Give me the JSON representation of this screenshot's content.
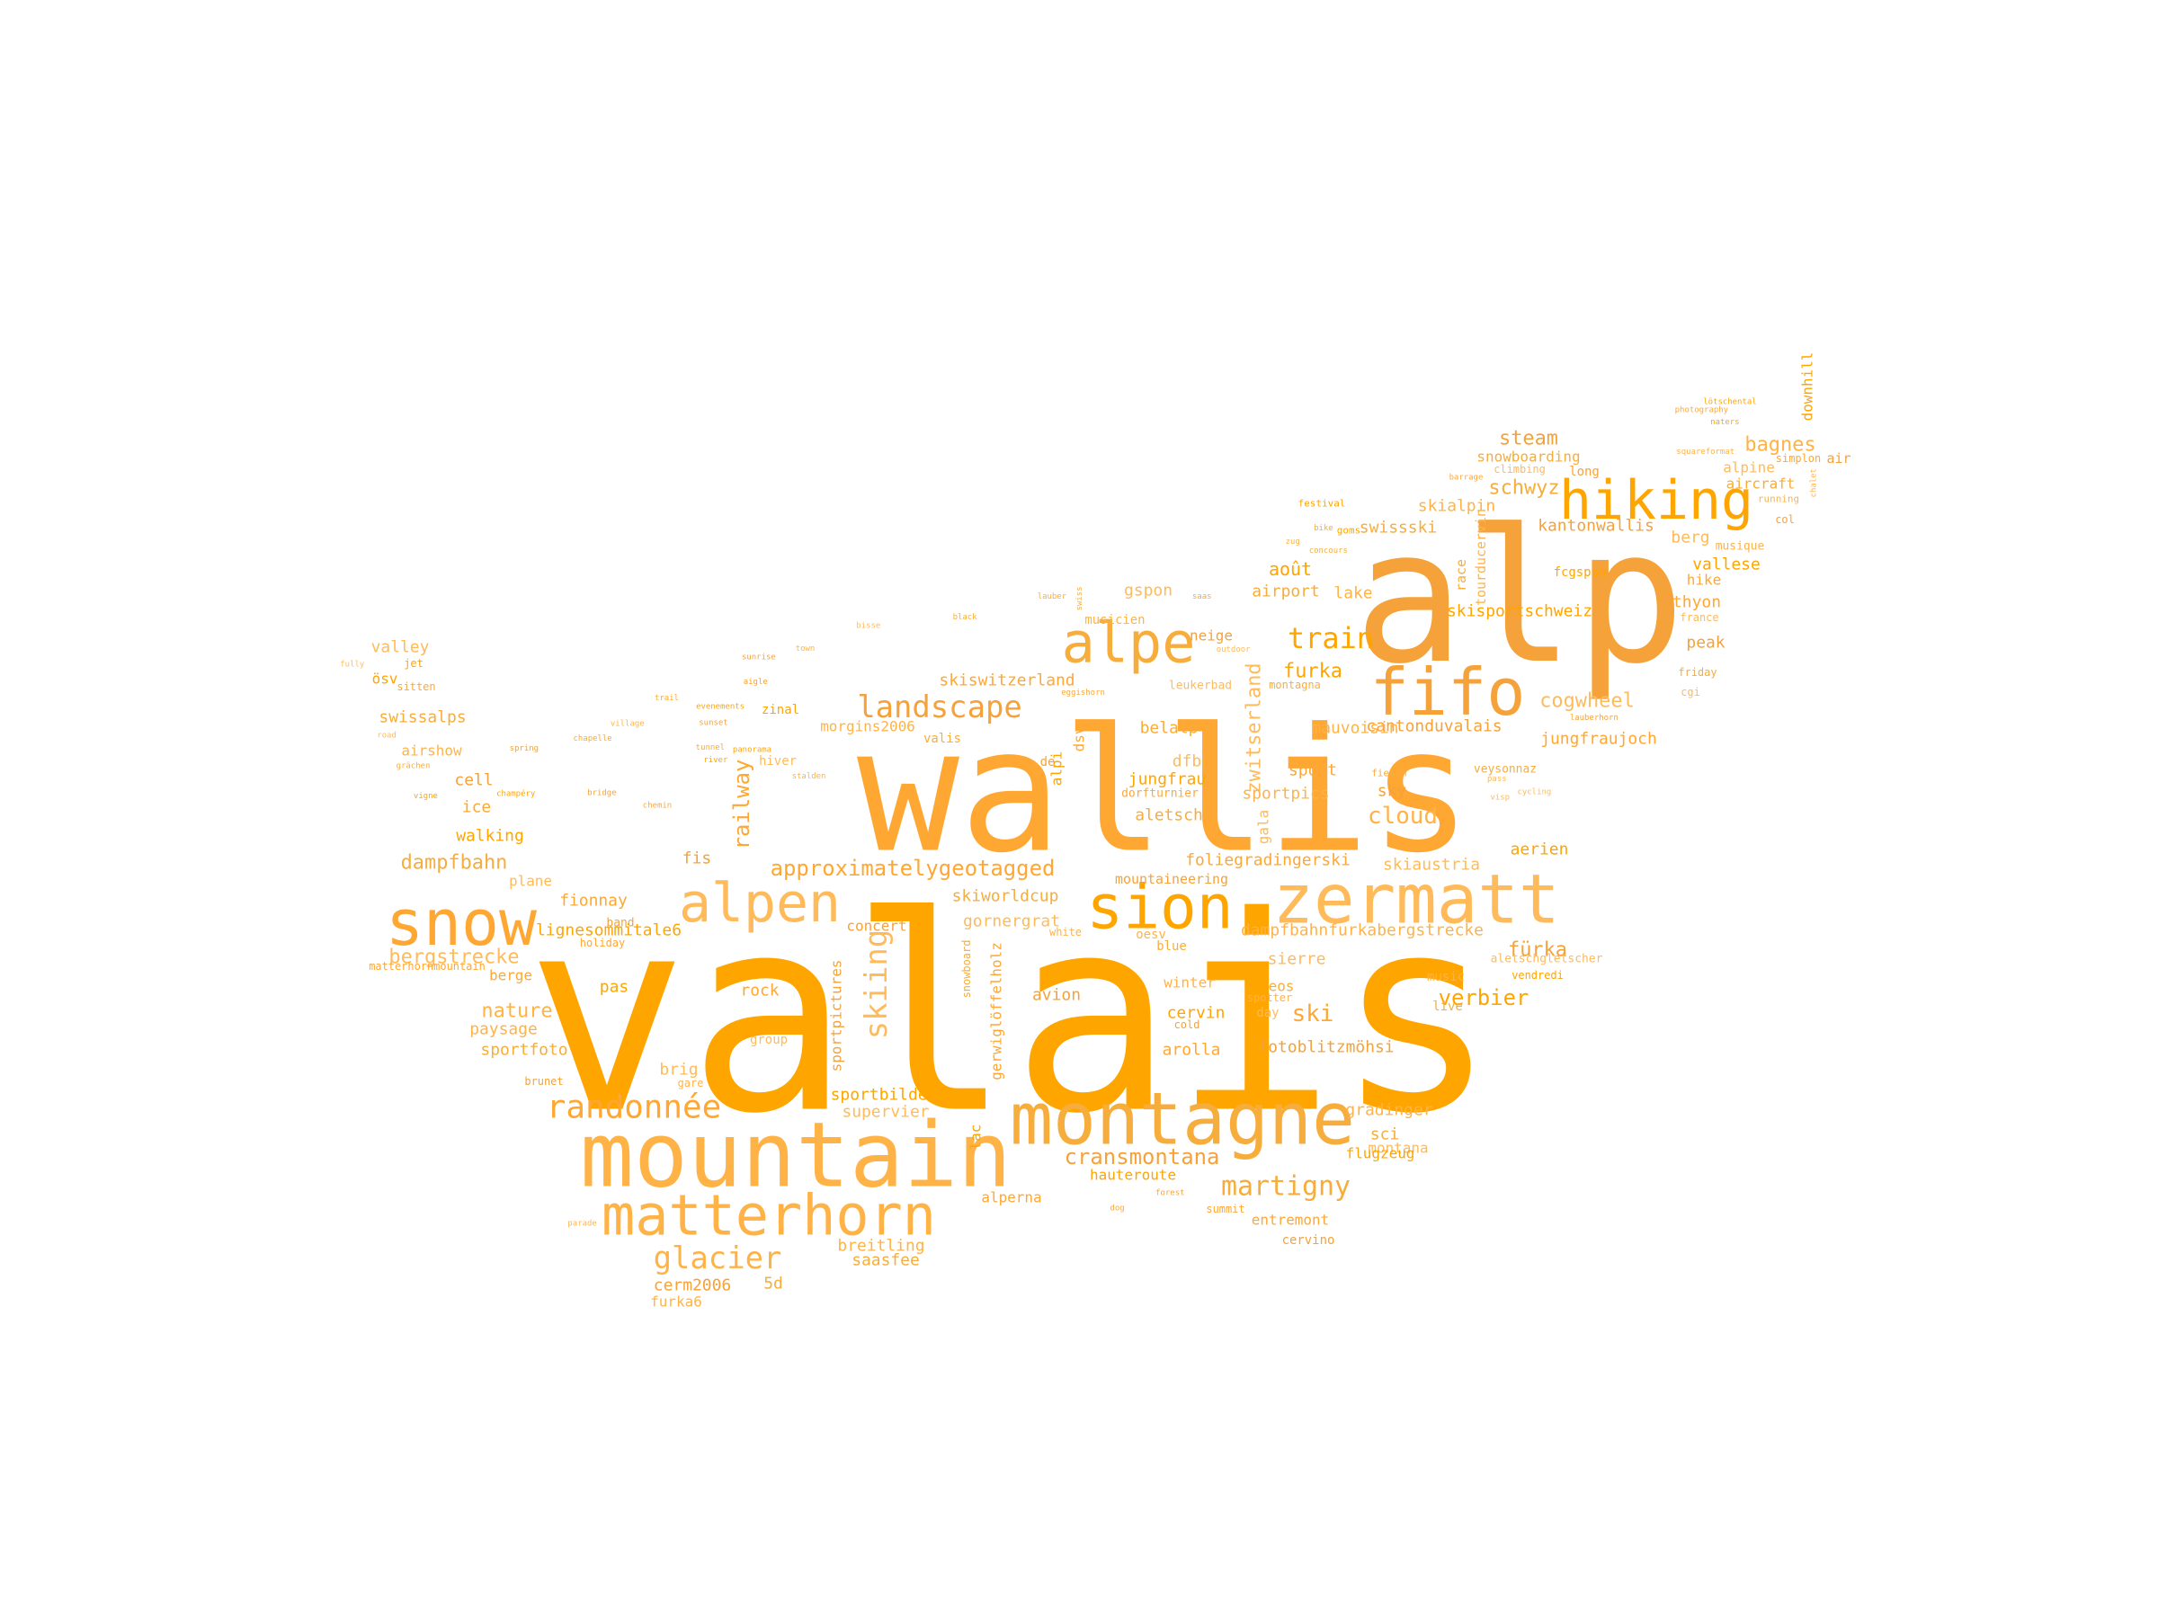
{
  "colors": {
    "background": "#ffffff",
    "word_color": "#ffa500"
  },
  "words": [
    {
      "text": "valais",
      "w": 100
    },
    {
      "text": "wallis",
      "w": 78
    },
    {
      "text": "alp",
      "w": 66
    },
    {
      "text": "mountain",
      "w": 34
    },
    {
      "text": "montagne",
      "w": 30
    },
    {
      "text": "zermatt",
      "w": 28
    },
    {
      "text": "sion",
      "w": 27
    },
    {
      "text": "snow",
      "w": 26
    },
    {
      "text": "fifo",
      "w": 26
    },
    {
      "text": "matterhorn",
      "w": 24
    },
    {
      "text": "alpe",
      "w": 24
    },
    {
      "text": "alpen",
      "w": 24
    },
    {
      "text": "hiking",
      "w": 24
    },
    {
      "text": "randonnée",
      "w": 15
    },
    {
      "text": "landscape",
      "w": 14
    },
    {
      "text": "glacier",
      "w": 13
    },
    {
      "text": "martigny",
      "w": 12
    },
    {
      "text": "skiing",
      "w": 12
    },
    {
      "text": "train",
      "w": 12
    },
    {
      "text": "approximatelygeotagged",
      "w": 11
    },
    {
      "text": "cransmontana",
      "w": 10
    },
    {
      "text": "cloud",
      "w": 10
    },
    {
      "text": "dampfbahn",
      "w": 10
    },
    {
      "text": "bergstrecke",
      "w": 10
    },
    {
      "text": "verbier",
      "w": 10
    },
    {
      "text": "ski",
      "w": 10
    },
    {
      "text": "steam",
      "w": 9
    },
    {
      "text": "bagnes",
      "w": 9
    },
    {
      "text": "schwyz",
      "w": 9
    },
    {
      "text": "cogwheel",
      "w": 9
    },
    {
      "text": "furka",
      "w": 9
    },
    {
      "text": "railway",
      "w": 9
    },
    {
      "text": "fürka",
      "w": 9
    },
    {
      "text": "nature",
      "w": 9
    },
    {
      "text": "aircraft",
      "w": 7
    },
    {
      "text": "zwitserland",
      "w": 8
    },
    {
      "text": "août",
      "w": 8
    },
    {
      "text": "skiswitzerland",
      "w": 7
    },
    {
      "text": "kantonwallis",
      "w": 7
    },
    {
      "text": "skialpin",
      "w": 7
    },
    {
      "text": "swissski",
      "w": 7
    },
    {
      "text": "berg",
      "w": 7
    },
    {
      "text": "vallese",
      "w": 7
    },
    {
      "text": "thyon",
      "w": 7
    },
    {
      "text": "peak",
      "w": 7
    },
    {
      "text": "lake",
      "w": 7
    },
    {
      "text": "airport",
      "w": 7
    },
    {
      "text": "gspon",
      "w": 7
    },
    {
      "text": "skisportschweiz",
      "w": 7
    },
    {
      "text": "jungfraujoch",
      "w": 7
    },
    {
      "text": "cantonduvalais",
      "w": 7
    },
    {
      "text": "mauvoisin",
      "w": 7
    },
    {
      "text": "belalp",
      "w": 7
    },
    {
      "text": "dfb",
      "w": 7
    },
    {
      "text": "jungfrau",
      "w": 7
    },
    {
      "text": "sport",
      "w": 7
    },
    {
      "text": "sky",
      "w": 7
    },
    {
      "text": "sportpics",
      "w": 7
    },
    {
      "text": "aletsch",
      "w": 7
    },
    {
      "text": "skiaustria",
      "w": 7
    },
    {
      "text": "aerien",
      "w": 7
    },
    {
      "text": "foliegradingerski",
      "w": 7
    },
    {
      "text": "mountaineering",
      "w": 6
    },
    {
      "text": "dampfbahnfurkabergstrecke",
      "w": 7
    },
    {
      "text": "skiworldcup",
      "w": 7
    },
    {
      "text": "gornergrat",
      "w": 7
    },
    {
      "text": "lignesommitale6",
      "w": 7
    },
    {
      "text": "fionnay",
      "w": 7
    },
    {
      "text": "concert",
      "w": 7
    },
    {
      "text": "paysage",
      "w": 7
    },
    {
      "text": "sportfoto",
      "w": 7
    },
    {
      "text": "brig",
      "w": 7
    },
    {
      "text": "pas",
      "w": 7
    },
    {
      "text": "rock",
      "w": 7
    },
    {
      "text": "avion",
      "w": 7
    },
    {
      "text": "winter",
      "w": 7
    },
    {
      "text": "eos",
      "w": 7
    },
    {
      "text": "sierre",
      "w": 7
    },
    {
      "text": "cervin",
      "w": 7
    },
    {
      "text": "arolla",
      "w": 7
    },
    {
      "text": "fotoblitzmöhsi",
      "w": 7
    },
    {
      "text": "gradinger",
      "w": 7
    },
    {
      "text": "sci",
      "w": 7
    },
    {
      "text": "montana",
      "w": 7
    },
    {
      "text": "hauteroute",
      "w": 7
    },
    {
      "text": "entremont",
      "w": 7
    },
    {
      "text": "cervino",
      "w": 6
    },
    {
      "text": "breitling",
      "w": 7
    },
    {
      "text": "saasfee",
      "w": 7
    },
    {
      "text": "supervier",
      "w": 7
    },
    {
      "text": "sportbilder",
      "w": 7
    },
    {
      "text": "alperna",
      "w": 7
    },
    {
      "text": "cerm2006",
      "w": 7
    },
    {
      "text": "furka6",
      "w": 6
    },
    {
      "text": "5d",
      "w": 7
    },
    {
      "text": "plane",
      "w": 7
    },
    {
      "text": "walking",
      "w": 7
    },
    {
      "text": "ice",
      "w": 7
    },
    {
      "text": "cell",
      "w": 7
    },
    {
      "text": "airshow",
      "w": 7
    },
    {
      "text": "swissalps",
      "w": 7
    },
    {
      "text": "valley",
      "w": 7
    },
    {
      "text": "ösv",
      "w": 7
    },
    {
      "text": "berge",
      "w": 7
    },
    {
      "text": "fis",
      "w": 7
    },
    {
      "text": "morgins2006",
      "w": 7
    },
    {
      "text": "snowboarding",
      "w": 6
    },
    {
      "text": "alpine",
      "w": 7
    },
    {
      "text": "downhill",
      "w": 7
    },
    {
      "text": "hike",
      "w": 7
    },
    {
      "text": "neige",
      "w": 7
    },
    {
      "text": "oesv",
      "w": 6
    },
    {
      "text": "blue",
      "w": 6
    },
    {
      "text": "gala",
      "w": 6
    },
    {
      "text": "alpi",
      "w": 6
    },
    {
      "text": "dsv",
      "w": 6
    },
    {
      "text": "de",
      "w": 6
    },
    {
      "text": "tourducervin",
      "w": 6
    },
    {
      "text": "race",
      "w": 6
    },
    {
      "text": "group",
      "w": 6
    },
    {
      "text": "lac",
      "w": 6
    },
    {
      "text": "gerwiglöffelholz",
      "w": 6
    },
    {
      "text": "sportpictures",
      "w": 6
    },
    {
      "text": "music",
      "w": 6
    },
    {
      "text": "live",
      "w": 6
    },
    {
      "text": "day",
      "w": 6
    },
    {
      "text": "flugzeug",
      "w": 6
    },
    {
      "text": "summit",
      "w": 5
    },
    {
      "text": "long",
      "w": 6
    },
    {
      "text": "musique",
      "w": 6
    },
    {
      "text": "friday",
      "w": 5
    },
    {
      "text": "france",
      "w": 5
    },
    {
      "text": "fcgspon",
      "w": 6
    },
    {
      "text": "simplon",
      "w": 6
    },
    {
      "text": "air",
      "w": 6
    },
    {
      "text": "musicien",
      "w": 6
    },
    {
      "text": "valis",
      "w": 6
    },
    {
      "text": "hiver",
      "w": 6
    },
    {
      "text": "zinal",
      "w": 6
    },
    {
      "text": "holiday",
      "w": 5
    },
    {
      "text": "band",
      "w": 6
    },
    {
      "text": "gare",
      "w": 5
    },
    {
      "text": "montagna",
      "w": 5
    },
    {
      "text": "leukerbad",
      "w": 5
    },
    {
      "text": "festival",
      "w": 5
    },
    {
      "text": "dorfturnier",
      "w": 5
    },
    {
      "text": "cold",
      "w": 5
    },
    {
      "text": "spotter",
      "w": 5
    },
    {
      "text": "veysonnaz",
      "w": 5
    },
    {
      "text": "aletschgletscher",
      "w": 5
    },
    {
      "text": "vendredi",
      "w": 5
    },
    {
      "text": "matterhornmountain",
      "w": 5
    },
    {
      "text": "brunet",
      "w": 5
    },
    {
      "text": "running",
      "w": 5
    },
    {
      "text": "fiesch",
      "w": 5
    },
    {
      "text": "climbing",
      "w": 5
    },
    {
      "text": "jet",
      "w": 5
    },
    {
      "text": "sitten",
      "w": 5
    },
    {
      "text": "col",
      "w": 5
    },
    {
      "text": "white",
      "w": 5
    },
    {
      "text": "snowboard",
      "w": 5
    },
    {
      "text": "cgi",
      "w": 5
    },
    {
      "text": "goms",
      "w": 5
    },
    {
      "text": "tunnel",
      "w": 4
    },
    {
      "text": "spring",
      "w": 4
    },
    {
      "text": "village",
      "w": 4
    },
    {
      "text": "trail",
      "w": 4
    },
    {
      "text": "fully",
      "w": 4
    },
    {
      "text": "evenements",
      "w": 4
    },
    {
      "text": "photography",
      "w": 4
    },
    {
      "text": "sunrise",
      "w": 4
    },
    {
      "text": "parade",
      "w": 4
    },
    {
      "text": "black",
      "w": 4
    },
    {
      "text": "outdoor",
      "w": 4
    },
    {
      "text": "lötschental",
      "w": 4
    },
    {
      "text": "saas",
      "w": 4
    },
    {
      "text": "bridge",
      "w": 4
    },
    {
      "text": "chalet",
      "w": 4
    },
    {
      "text": "lauber",
      "w": 4
    },
    {
      "text": "visp",
      "w": 4
    },
    {
      "text": "naters",
      "w": 4
    },
    {
      "text": "dog",
      "w": 4
    },
    {
      "text": "forest",
      "w": 4
    },
    {
      "text": "zug",
      "w": 4
    },
    {
      "text": "bike",
      "w": 4
    },
    {
      "text": "pass",
      "w": 4
    },
    {
      "text": "river",
      "w": 4
    },
    {
      "text": "barrage",
      "w": 4
    },
    {
      "text": "sunset",
      "w": 4
    },
    {
      "text": "town",
      "w": 4
    },
    {
      "text": "swiss",
      "w": 4
    },
    {
      "text": "road",
      "w": 4
    },
    {
      "text": "champéry",
      "w": 4
    },
    {
      "text": "eggishorn",
      "w": 4
    },
    {
      "text": "aigle",
      "w": 4
    },
    {
      "text": "stalden",
      "w": 4
    },
    {
      "text": "grächen",
      "w": 4
    },
    {
      "text": "cycling",
      "w": 4
    },
    {
      "text": "panorama",
      "w": 4
    },
    {
      "text": "chapelle",
      "w": 4
    },
    {
      "text": "lauberhorn",
      "w": 4
    },
    {
      "text": "squareformat",
      "w": 4
    },
    {
      "text": "concours",
      "w": 4
    },
    {
      "text": "bisse",
      "w": 4
    },
    {
      "text": "vigne",
      "w": 4
    },
    {
      "text": "chemin",
      "w": 4
    }
  ]
}
